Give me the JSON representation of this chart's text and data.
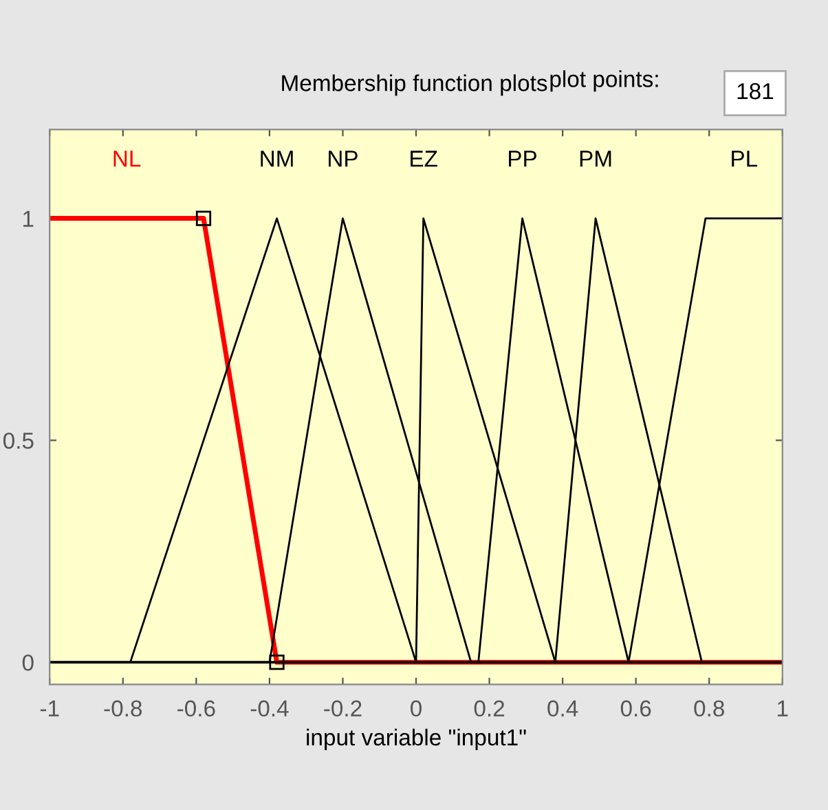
{
  "chart_data": {
    "type": "line",
    "title": "Membership function plots",
    "xlabel": "input variable \"input1\"",
    "annotations": [
      "plot points:",
      "181"
    ],
    "xlim": [
      -1,
      1
    ],
    "ylim": [
      -0.05,
      1.2
    ],
    "xticks": [
      -1,
      -0.8,
      -0.6,
      -0.4,
      -0.2,
      0,
      0.2,
      0.4,
      0.6,
      0.8,
      1
    ],
    "yticks": [
      0,
      0.5,
      1
    ],
    "grid": false,
    "legend": false,
    "series": [
      {
        "name": "NL",
        "color": "#ff0000",
        "x": [
          -1,
          -0.58,
          -0.38,
          1
        ],
        "values": [
          1,
          1,
          0,
          0
        ],
        "marker": "square"
      },
      {
        "name": "NM",
        "color": "#000000",
        "x": [
          -1,
          -0.78,
          -0.38,
          0,
          1
        ],
        "values": [
          0,
          0,
          1,
          0,
          0
        ]
      },
      {
        "name": "NP",
        "color": "#000000",
        "x": [
          -1,
          -0.4,
          -0.2,
          0.15,
          1
        ],
        "values": [
          0,
          0,
          1,
          0,
          0
        ]
      },
      {
        "name": "EZ",
        "color": "#000000",
        "x": [
          -1,
          0,
          0.02,
          0.38,
          1
        ],
        "values": [
          0,
          0,
          1,
          0,
          0
        ]
      },
      {
        "name": "PP",
        "color": "#000000",
        "x": [
          -1,
          0.17,
          0.29,
          0.58,
          1
        ],
        "values": [
          0,
          0,
          1,
          0,
          0
        ]
      },
      {
        "name": "PM",
        "color": "#000000",
        "x": [
          -1,
          0.38,
          0.49,
          0.78,
          1
        ],
        "values": [
          0,
          0,
          1,
          0,
          0
        ]
      },
      {
        "name": "PL",
        "color": "#000000",
        "x": [
          -1,
          0.58,
          0.79,
          1
        ],
        "values": [
          0,
          0,
          1,
          1
        ]
      }
    ]
  }
}
